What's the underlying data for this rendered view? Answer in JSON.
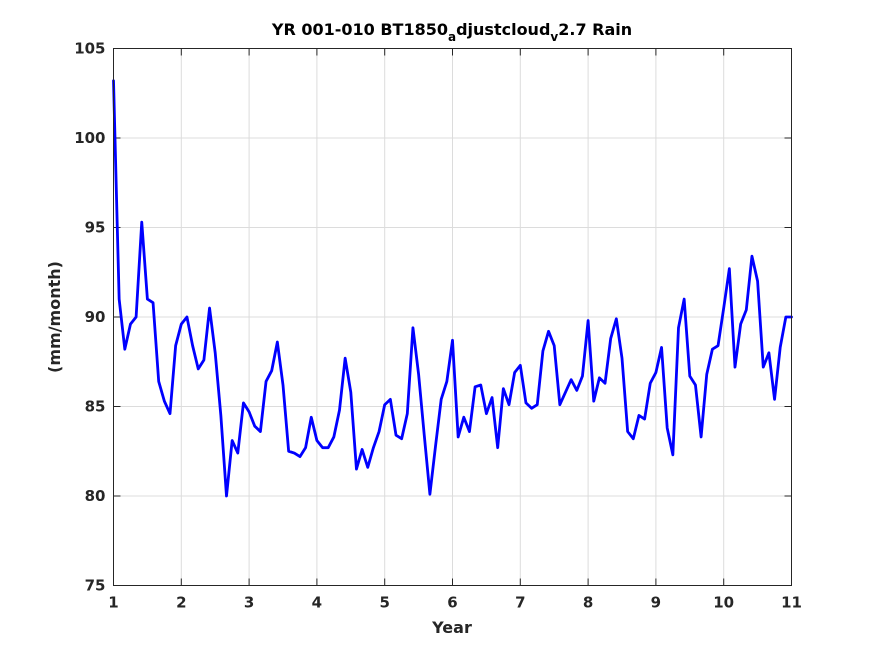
{
  "chart_data": {
    "type": "line",
    "title": {
      "main": "YR 001-010 BT1850",
      "sub1": "a",
      "mid": "djustcloud",
      "sub2": "v",
      "tail": "2.7 Rain"
    },
    "xlabel": "Year",
    "ylabel": "(mm/month)",
    "xlim": [
      1,
      11
    ],
    "ylim": [
      75,
      105
    ],
    "xticks": [
      1,
      2,
      3,
      4,
      5,
      6,
      7,
      8,
      9,
      10,
      11
    ],
    "yticks": [
      75,
      80,
      85,
      90,
      95,
      100,
      105
    ],
    "grid": true,
    "series": [
      {
        "color": "#0000ff",
        "x": [
          1.0,
          1.0833,
          1.1667,
          1.25,
          1.3333,
          1.4167,
          1.5,
          1.5833,
          1.6667,
          1.75,
          1.8333,
          1.9167,
          2.0,
          2.0833,
          2.1667,
          2.25,
          2.3333,
          2.4167,
          2.5,
          2.5833,
          2.6667,
          2.75,
          2.8333,
          2.9167,
          3.0,
          3.0833,
          3.1667,
          3.25,
          3.3333,
          3.4167,
          3.5,
          3.5833,
          3.6667,
          3.75,
          3.8333,
          3.9167,
          4.0,
          4.0833,
          4.1667,
          4.25,
          4.3333,
          4.4167,
          4.5,
          4.5833,
          4.6667,
          4.75,
          4.8333,
          4.9167,
          5.0,
          5.0833,
          5.1667,
          5.25,
          5.3333,
          5.4167,
          5.5,
          5.5833,
          5.6667,
          5.75,
          5.8333,
          5.9167,
          6.0,
          6.0833,
          6.1667,
          6.25,
          6.3333,
          6.4167,
          6.5,
          6.5833,
          6.6667,
          6.75,
          6.8333,
          6.9167,
          7.0,
          7.0833,
          7.1667,
          7.25,
          7.3333,
          7.4167,
          7.5,
          7.5833,
          7.6667,
          7.75,
          7.8333,
          7.9167,
          8.0,
          8.0833,
          8.1667,
          8.25,
          8.3333,
          8.4167,
          8.5,
          8.5833,
          8.6667,
          8.75,
          8.8333,
          8.9167,
          9.0,
          9.0833,
          9.1667,
          9.25,
          9.3333,
          9.4167,
          9.5,
          9.5833,
          9.6667,
          9.75,
          9.8333,
          9.9167,
          10.0,
          10.0833,
          10.1667,
          10.25,
          10.3333,
          10.4167,
          10.5,
          10.5833,
          10.6667,
          10.75,
          10.8333,
          10.9167,
          11.0
        ],
        "y": [
          103.2,
          91.0,
          88.2,
          89.6,
          90.0,
          95.3,
          91.0,
          90.8,
          86.4,
          85.3,
          84.6,
          88.4,
          89.6,
          90.0,
          88.4,
          87.1,
          87.6,
          90.5,
          88.0,
          84.5,
          80.0,
          83.1,
          82.4,
          85.2,
          84.7,
          83.9,
          83.6,
          86.4,
          87.0,
          88.6,
          86.2,
          82.5,
          82.4,
          82.2,
          82.7,
          84.4,
          83.1,
          82.7,
          82.7,
          83.3,
          84.8,
          87.7,
          85.8,
          81.5,
          82.6,
          81.6,
          82.7,
          83.6,
          85.1,
          85.4,
          83.4,
          83.2,
          84.6,
          89.4,
          86.8,
          83.4,
          80.1,
          82.8,
          85.4,
          86.4,
          88.7,
          83.3,
          84.4,
          83.6,
          86.1,
          86.2,
          84.6,
          85.5,
          82.7,
          86.0,
          85.1,
          86.9,
          87.3,
          85.2,
          84.9,
          85.1,
          88.1,
          89.2,
          88.4,
          85.1,
          85.8,
          86.5,
          85.9,
          86.7,
          89.8,
          85.3,
          86.6,
          86.3,
          88.8,
          89.9,
          87.7,
          83.6,
          83.2,
          84.5,
          84.3,
          86.3,
          86.9,
          88.3,
          83.8,
          82.3,
          89.4,
          91.0,
          86.7,
          86.2,
          83.3,
          86.8,
          88.2,
          88.4,
          90.5,
          92.7,
          87.2,
          89.6,
          90.4,
          93.4,
          92.0,
          87.2,
          88.0,
          85.4,
          88.3,
          90.0,
          90.0
        ]
      }
    ]
  }
}
